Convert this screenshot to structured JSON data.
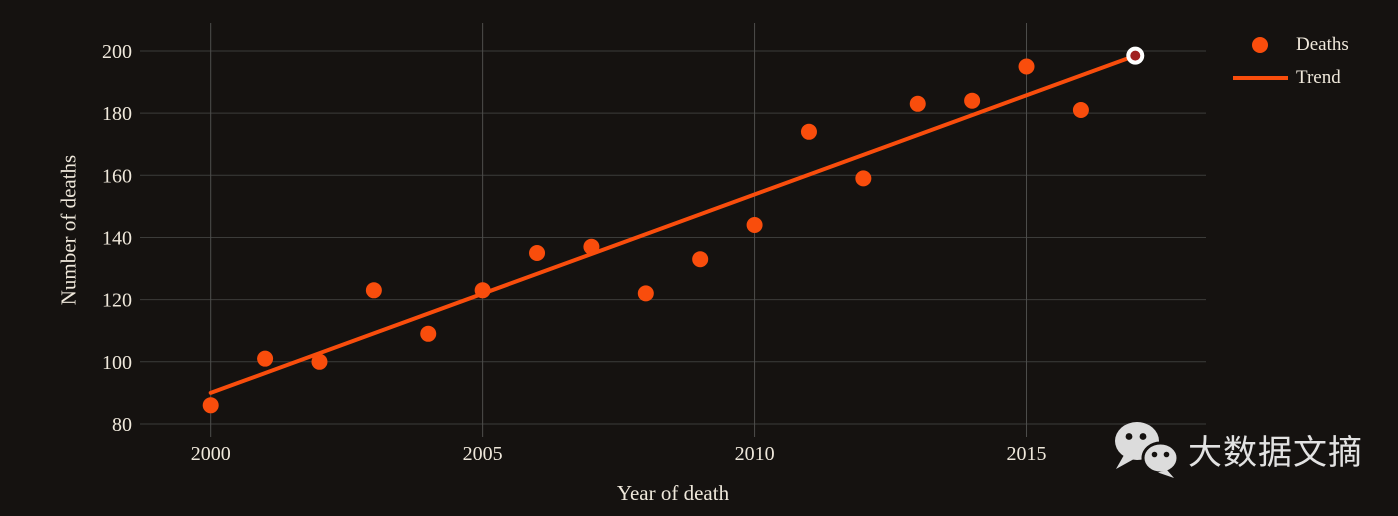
{
  "chart_data": {
    "type": "scatter",
    "title": "",
    "xlabel": "Year of death",
    "ylabel": "Number of deaths",
    "xticks": [
      2000,
      2005,
      2010,
      2015
    ],
    "yticks": [
      80,
      100,
      120,
      140,
      160,
      180,
      200
    ],
    "xlim": [
      1998.7,
      2018.3
    ],
    "ylim": [
      75.8,
      209.0
    ],
    "grid": true,
    "legend_position": "top-right",
    "series": [
      {
        "name": "Deaths",
        "kind": "scatter",
        "x": [
          2000,
          2001,
          2002,
          2003,
          2004,
          2005,
          2006,
          2007,
          2008,
          2009,
          2010,
          2011,
          2012,
          2013,
          2014,
          2015,
          2016
        ],
        "y": [
          86,
          101,
          100,
          123,
          109,
          123,
          135,
          137,
          122,
          133,
          144,
          174,
          159,
          183,
          184,
          195,
          181
        ]
      },
      {
        "name": "Trend",
        "kind": "line",
        "x": [
          2000,
          2017
        ],
        "y": [
          90,
          198.5
        ]
      }
    ],
    "endpoint_marker": {
      "series": "Trend",
      "x": 2017,
      "y": 198.5
    }
  },
  "axes": {
    "x_title": "Year of death",
    "y_title": "Number of deaths"
  },
  "legend": {
    "items": [
      {
        "label": "Deaths",
        "marker": "dot"
      },
      {
        "label": "Trend",
        "marker": "line"
      }
    ]
  },
  "watermark": {
    "icon": "wechat-icon",
    "text": "大数据文摘"
  },
  "colors": {
    "background": "#151210",
    "accent_orange": "#f94d0c",
    "endpoint_fill": "#a11f1f",
    "endpoint_ring": "#ffffff",
    "grid_horizontal": "#3c3c3a",
    "grid_vertical": "#4e4e4c",
    "text": "#efe8db",
    "watermark": "#dcdcdc"
  }
}
